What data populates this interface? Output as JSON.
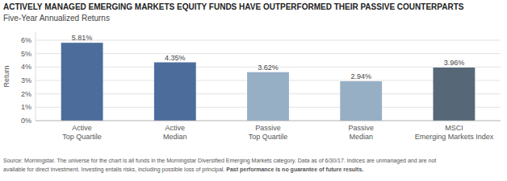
{
  "chart_data": {
    "type": "bar",
    "title": "ACTIVELY MANAGED EMERGING MARKETS EQUITY FUNDS HAVE OUTPERFORMED THEIR PASSIVE COUNTERPARTS",
    "subtitle": "Five-Year Annualized Returns",
    "categories": [
      "Active\nTop Quartile",
      "Active\nMedian",
      "Passive\nTop Quartile",
      "Passive\nMedian",
      "MSCI\nEmerging Markets Index"
    ],
    "values": [
      5.81,
      4.35,
      3.62,
      2.94,
      3.96
    ],
    "value_labels": [
      "5.81%",
      "4.35%",
      "3.62%",
      "2.94%",
      "3.96%"
    ],
    "colors": [
      "#4c6d9c",
      "#4c6d9c",
      "#97afc5",
      "#97afc5",
      "#566878"
    ],
    "ylabel": "Return",
    "ylim": [
      0,
      6.6
    ],
    "yticks": [
      {
        "value": 0,
        "label": "0%"
      },
      {
        "value": 1,
        "label": "1%"
      },
      {
        "value": 2,
        "label": "2%"
      },
      {
        "value": 3,
        "label": "3%"
      },
      {
        "value": 4,
        "label": "4%"
      },
      {
        "value": 5,
        "label": "5%"
      },
      {
        "value": 6,
        "label": "6%"
      }
    ],
    "grid": true,
    "footnote": [
      "Source: Morningstar. The universe for the chart is all funds in the Morningstar Diversified Emerging Markets category. Data as of 6/30/17. Indices are unmanaged and are not",
      "available for direct investment. Investing entails risks, including possible loss of principal. ",
      "Past performance is no guarantee of future results."
    ]
  }
}
